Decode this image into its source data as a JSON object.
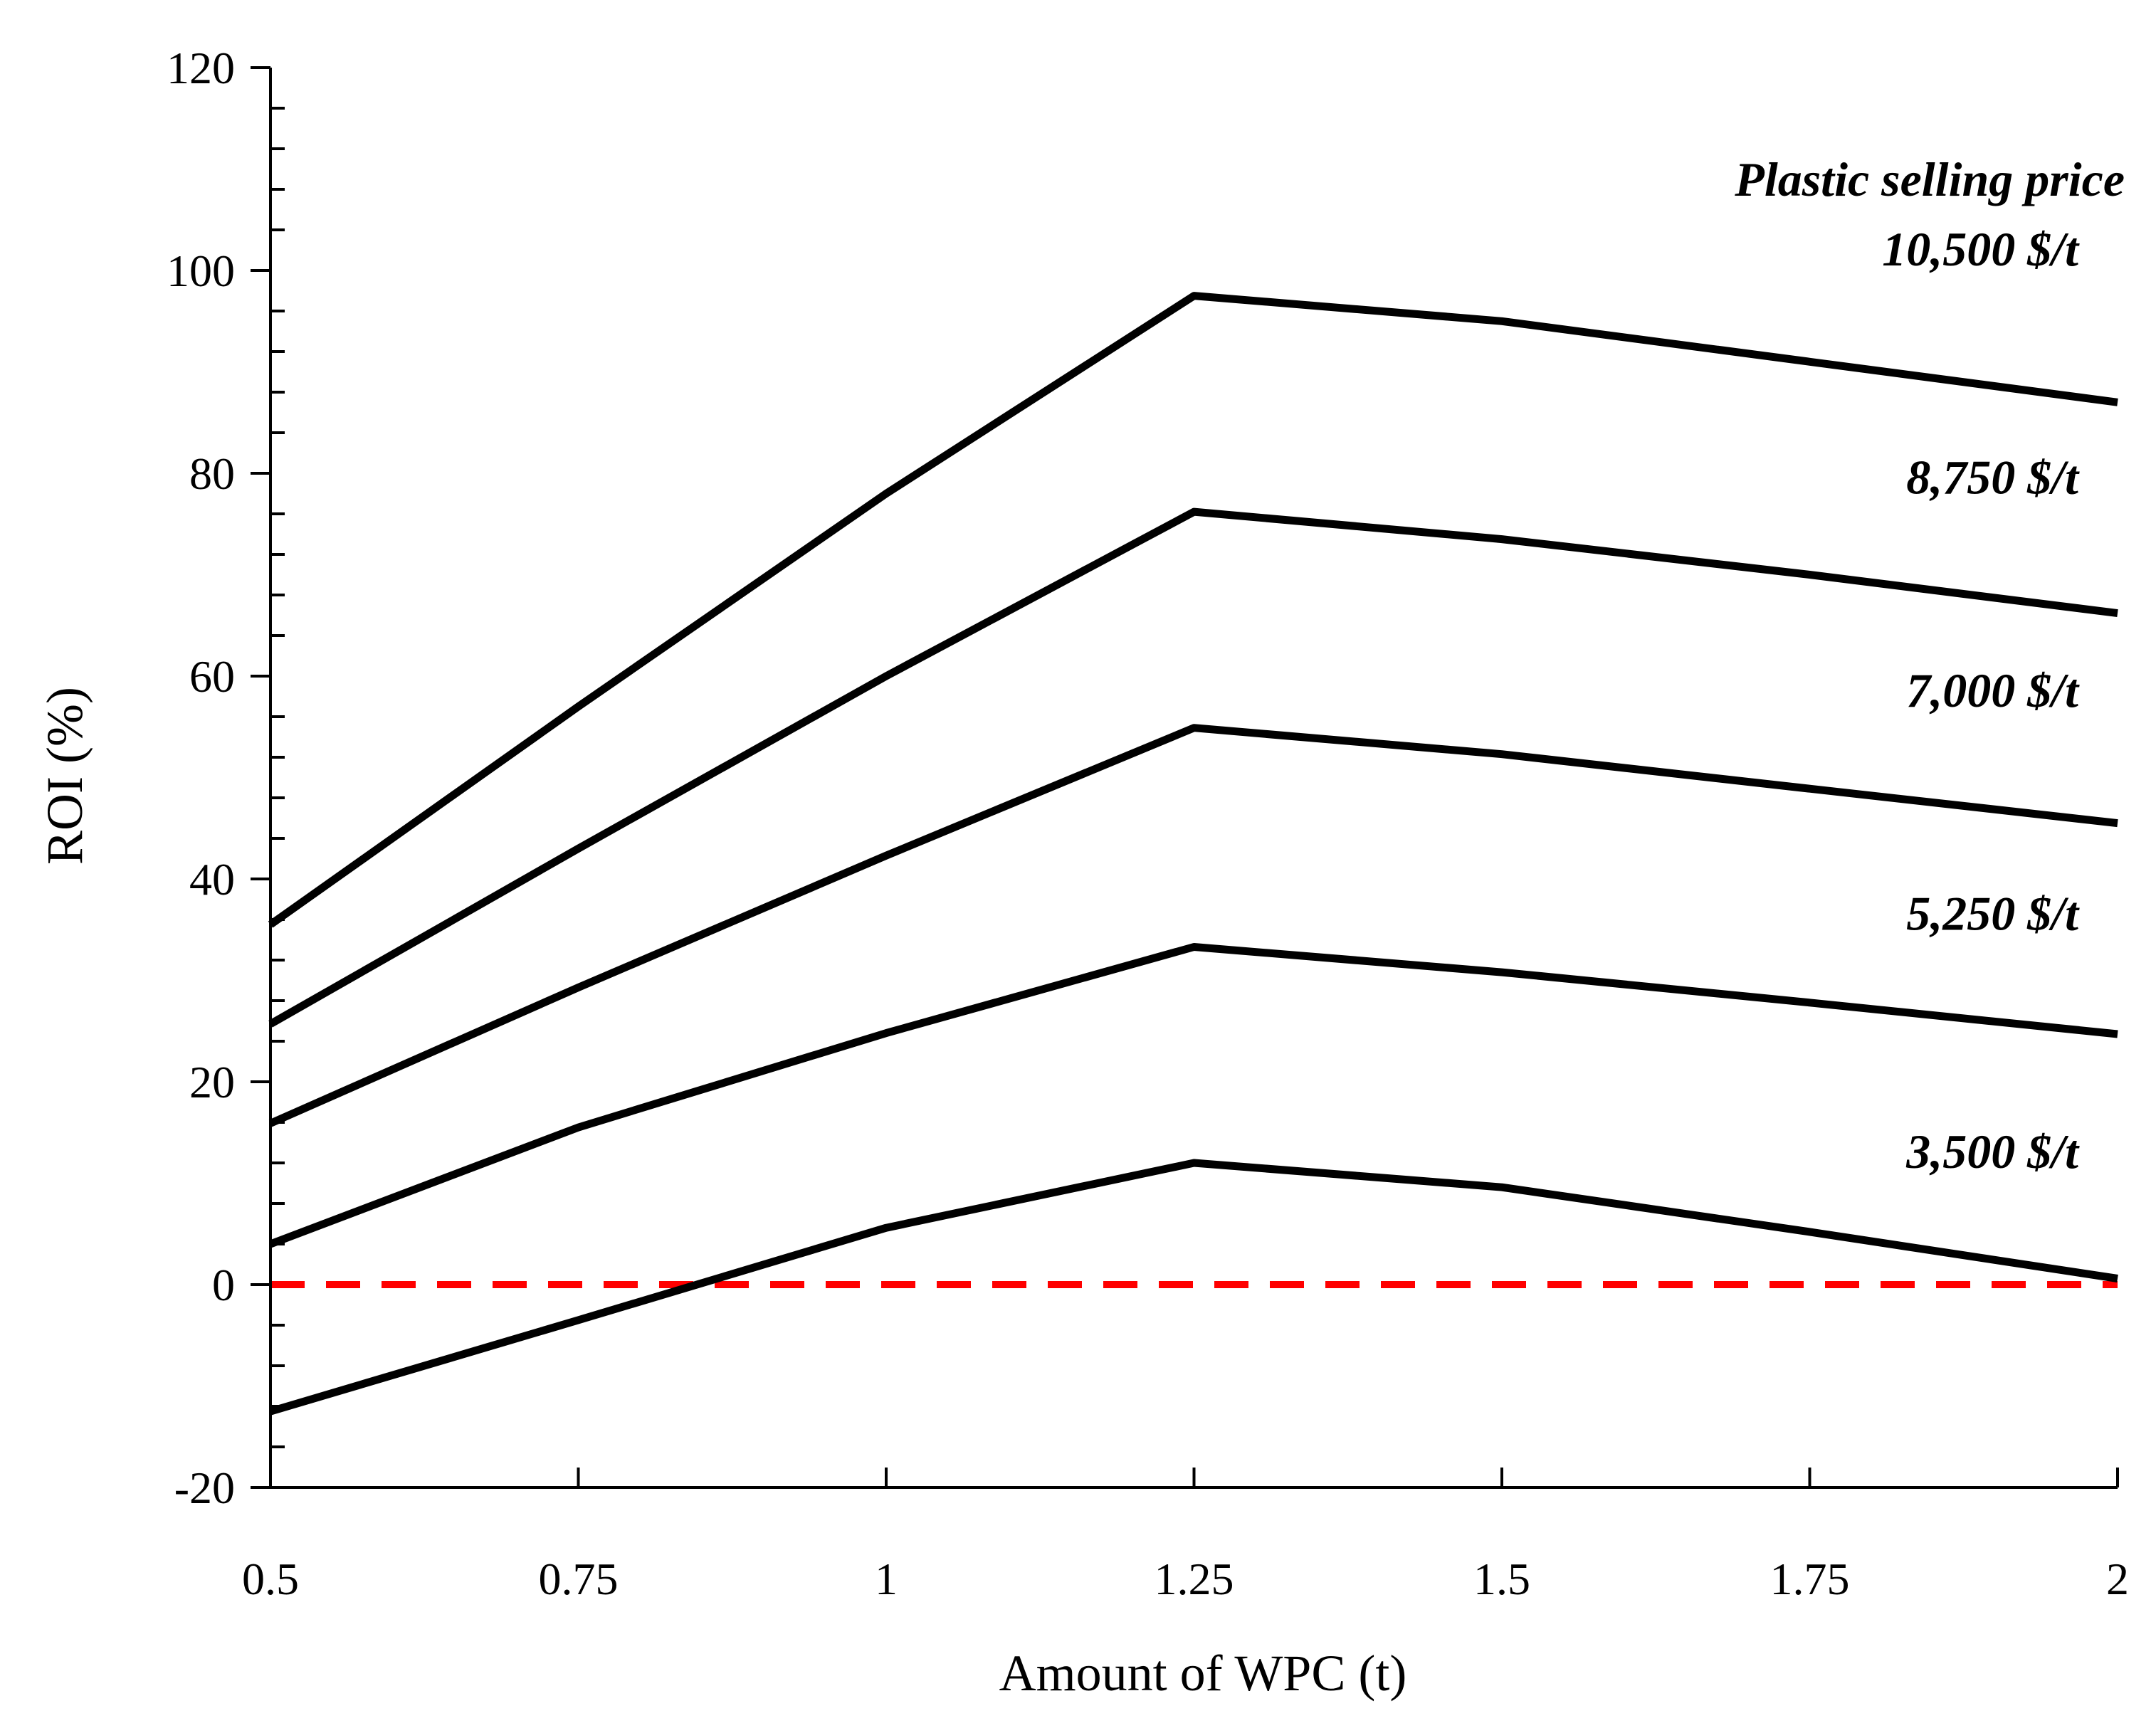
{
  "chart_data": {
    "type": "line",
    "title": "",
    "xlabel": "Amount of WPC (t)",
    "ylabel": "ROI (%)",
    "x": [
      0.5,
      0.75,
      1,
      1.25,
      1.5,
      1.75,
      2
    ],
    "x_tick_labels": [
      "0.5",
      "0.75",
      "1",
      "1.25",
      "1.5",
      "1.75",
      "2"
    ],
    "xlim": [
      0.5,
      2
    ],
    "ylim": [
      -20,
      120
    ],
    "y_ticks": [
      -20,
      0,
      20,
      40,
      60,
      80,
      100,
      120
    ],
    "y_tick_labels": [
      "-20",
      "0",
      "20",
      "40",
      "60",
      "80",
      "100",
      "120"
    ],
    "y_minor_step": 4,
    "grid": false,
    "legend_title": "Plastic selling price",
    "series": [
      {
        "name": "10,500 $/t",
        "values": [
          35.5,
          57,
          78,
          97.5,
          95,
          91,
          87
        ]
      },
      {
        "name": "8,750 $/t",
        "values": [
          25.7,
          43,
          60,
          76.2,
          73.5,
          70,
          66.2
        ]
      },
      {
        "name": "7,000 $/t",
        "values": [
          15.9,
          29.3,
          42.3,
          54.9,
          52.3,
          48.9,
          45.5
        ]
      },
      {
        "name": "5,250 $/t",
        "values": [
          4,
          15.5,
          24.8,
          33.3,
          30.8,
          27.8,
          24.7
        ]
      },
      {
        "name": "3,500 $/t",
        "values": [
          -12.5,
          -3.5,
          5.6,
          12,
          9.6,
          5.2,
          0.6
        ]
      }
    ],
    "reference_line": {
      "y": 0,
      "color": "#ff0000",
      "style": "dashed"
    },
    "line_color": "#000000"
  }
}
